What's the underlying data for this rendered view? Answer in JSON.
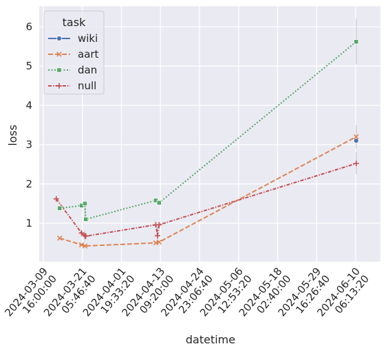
{
  "chart_data": {
    "type": "line",
    "xlabel": "datetime",
    "ylabel": "loss",
    "ylim": [
      0,
      6.5
    ],
    "y_ticks": [
      "1",
      "2",
      "3",
      "4",
      "5",
      "6"
    ],
    "x_ticks": [
      {
        "date": "2024-03-09",
        "time": "16:00:00"
      },
      {
        "date": "2024-03-21",
        "time": "05:46:40"
      },
      {
        "date": "2024-04-01",
        "time": "19:33:20"
      },
      {
        "date": "2024-04-13",
        "time": "09:20:00"
      },
      {
        "date": "2024-04-24",
        "time": "23:06:40"
      },
      {
        "date": "2024-05-06",
        "time": "12:53:20"
      },
      {
        "date": "2024-05-18",
        "time": "02:40:00"
      },
      {
        "date": "2024-05-29",
        "time": "16:26:40"
      },
      {
        "date": "2024-06-10",
        "time": "06:13:20"
      }
    ],
    "grid": true,
    "legend": {
      "title": "task",
      "placement": "top-left"
    },
    "series": [
      {
        "name": "wiki",
        "color": "#4c72b0",
        "marker": "circle",
        "dash": "solid",
        "points": [
          {
            "x": "2024-06-10 10:00",
            "y": 3.1
          }
        ]
      },
      {
        "name": "aart",
        "color": "#dd8452",
        "marker": "x",
        "dash": "dashed",
        "points": [
          {
            "x": "2024-03-14 12:00",
            "y": 0.62
          },
          {
            "x": "2024-03-21 00:00",
            "y": 0.45
          },
          {
            "x": "2024-03-22 00:00",
            "y": 0.42
          },
          {
            "x": "2024-04-12 00:00",
            "y": 0.5
          },
          {
            "x": "2024-04-13 00:00",
            "y": 0.52
          },
          {
            "x": "2024-06-10 10:00",
            "y": 3.2
          }
        ]
      },
      {
        "name": "dan",
        "color": "#55a868",
        "marker": "square",
        "dash": "dotted",
        "points": [
          {
            "x": "2024-03-14 12:00",
            "y": 1.38
          },
          {
            "x": "2024-03-21 00:00",
            "y": 1.45
          },
          {
            "x": "2024-03-22 00:00",
            "y": 1.5
          },
          {
            "x": "2024-03-22 06:00",
            "y": 1.1
          },
          {
            "x": "2024-04-12 00:00",
            "y": 1.58
          },
          {
            "x": "2024-04-13 00:00",
            "y": 1.52
          },
          {
            "x": "2024-06-10 10:00",
            "y": 5.62
          }
        ]
      },
      {
        "name": "null",
        "color": "#c44e52",
        "marker": "plus",
        "dash": "dashdot",
        "points": [
          {
            "x": "2024-03-13 12:00",
            "y": 1.62
          },
          {
            "x": "2024-03-21 00:00",
            "y": 0.75
          },
          {
            "x": "2024-03-22 00:00",
            "y": 0.68
          },
          {
            "x": "2024-03-22 06:00",
            "y": 0.67
          },
          {
            "x": "2024-04-12 00:00",
            "y": 0.96
          },
          {
            "x": "2024-04-12 12:00",
            "y": 0.68
          },
          {
            "x": "2024-04-13 00:00",
            "y": 0.96
          },
          {
            "x": "2024-06-10 10:00",
            "y": 2.52
          }
        ]
      }
    ],
    "error_bars": [
      {
        "series": "dan",
        "x": "2024-06-10 10:00",
        "low": 5.05,
        "high": 6.2
      },
      {
        "series": "null",
        "x": "2024-06-10 10:00",
        "low": 2.25,
        "high": 2.82
      },
      {
        "series": "aart",
        "x": "2024-06-10 10:00",
        "low": 2.9,
        "high": 3.5
      },
      {
        "series": "dan",
        "x": "2024-03-22 00:00",
        "low": 1.1,
        "high": 1.5
      },
      {
        "series": "null",
        "x": "2024-03-22 00:00",
        "low": 0.55,
        "high": 0.8
      },
      {
        "series": "null",
        "x": "2024-04-12 12:00",
        "low": 0.6,
        "high": 0.95
      }
    ]
  }
}
